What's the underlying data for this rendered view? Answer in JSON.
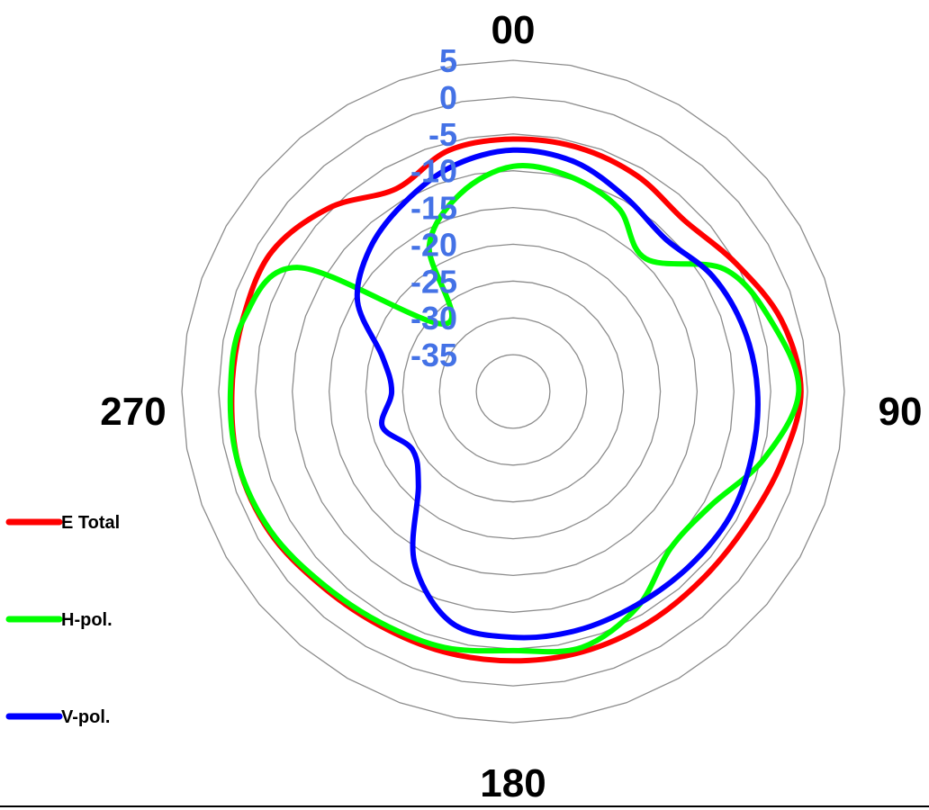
{
  "chart_data": {
    "type": "line",
    "polar": true,
    "angle_labels": [
      {
        "angle": 0,
        "text": "00"
      },
      {
        "angle": 90,
        "text": "90"
      },
      {
        "angle": 180,
        "text": "180"
      },
      {
        "angle": 270,
        "text": "270"
      }
    ],
    "radial_ticks": [
      5,
      0,
      -5,
      -10,
      -15,
      -20,
      -25,
      -30,
      -35
    ],
    "radial_tick_labels": [
      "5",
      "0",
      "-5",
      "-10",
      "-15",
      "-20",
      "-25",
      "-30",
      "-35"
    ],
    "rlim": [
      -40,
      5
    ],
    "grid": true,
    "legend_position": "bottom-left",
    "tick_label_color": "#4472e6",
    "angles": [
      0,
      15,
      30,
      45,
      60,
      75,
      90,
      105,
      120,
      135,
      150,
      165,
      180,
      195,
      210,
      225,
      240,
      255,
      270,
      285,
      300,
      315,
      330,
      345,
      360
    ],
    "series": [
      {
        "name": "E Total",
        "color": "#ff0000",
        "values": [
          -5.7,
          -5.7,
          -6.2,
          -7.1,
          -5.1,
          -2.3,
          -0.9,
          -2.3,
          -3.5,
          -3.8,
          -3.6,
          -3.4,
          -3.4,
          -3.4,
          -3.4,
          -2.9,
          -1.8,
          -1.4,
          -1.8,
          -2.0,
          -2.1,
          -4.7,
          -8.2,
          -6.1,
          -5.7
        ]
      },
      {
        "name": "H-pol.",
        "color": "#00ff00",
        "values": [
          -9.4,
          -9.8,
          -11.3,
          -14.5,
          -6.8,
          -3.6,
          -1.2,
          -4.7,
          -9.0,
          -9.8,
          -6.2,
          -4.0,
          -4.8,
          -4.0,
          -3.8,
          -3.2,
          -2.0,
          -1.4,
          -1.6,
          -2.1,
          -6.3,
          -27.0,
          -17.2,
          -12.2,
          -9.4
        ]
      },
      {
        "name": "V-pol.",
        "color": "#0000ff",
        "values": [
          -7.2,
          -7.7,
          -9.5,
          -10.7,
          -8.7,
          -7.5,
          -6.8,
          -6.4,
          -6.0,
          -6.3,
          -6.5,
          -6.4,
          -6.6,
          -7.5,
          -13.2,
          -21.8,
          -24.2,
          -21.6,
          -23.5,
          -21.6,
          -15.6,
          -12.5,
          -10.4,
          -8.3,
          -7.2
        ]
      }
    ]
  }
}
